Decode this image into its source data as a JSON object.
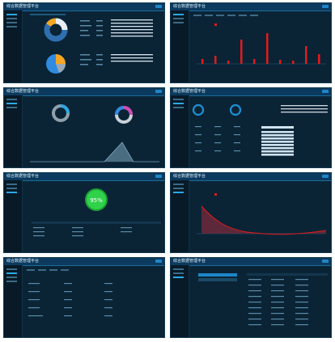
{
  "app_title": "综合数据管理平台",
  "panels": [
    {
      "id": "overview-pies"
    },
    {
      "id": "bar-chart"
    },
    {
      "id": "donut-area"
    },
    {
      "id": "rings-table"
    },
    {
      "id": "status-circle"
    },
    {
      "id": "decay-chart"
    },
    {
      "id": "form-table"
    },
    {
      "id": "list-table"
    }
  ],
  "status": {
    "value": "95%"
  },
  "colors": {
    "bg": "#0a2436",
    "accent": "#2ba9e6",
    "red": "#e21b1b",
    "green": "#2fd24a",
    "orange": "#f5a623"
  },
  "icons": {
    "settings": "gear-icon"
  }
}
